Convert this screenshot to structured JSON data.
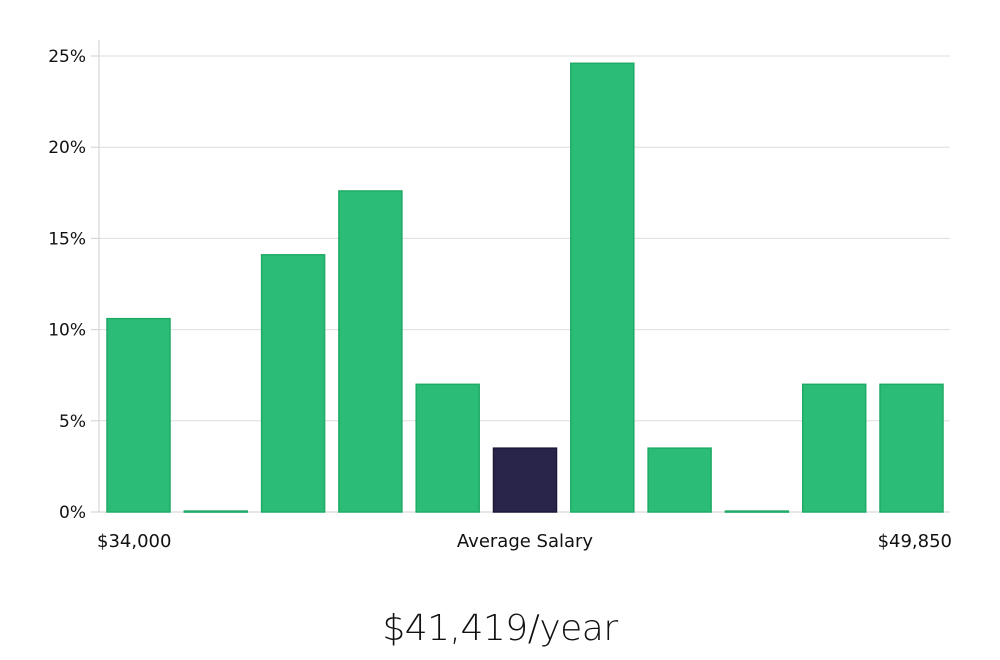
{
  "chart_data": {
    "type": "bar",
    "title": "",
    "xlabel": "Average Salary",
    "ylabel": "",
    "x_min_label": "$34,000",
    "x_max_label": "$49,850",
    "ylim": [
      0,
      25
    ],
    "y_ticks": [
      "0%",
      "5%",
      "10%",
      "15%",
      "20%",
      "25%"
    ],
    "grid": true,
    "values": [
      10.6,
      0.05,
      14.1,
      17.6,
      7.0,
      3.5,
      24.6,
      3.5,
      0.05,
      7.0,
      7.0
    ],
    "highlight_index": 5,
    "colors": {
      "bar": "#2bbd77",
      "bar_stroke": "#1faa66",
      "highlight": "#29254a",
      "grid": "#dddddd",
      "axis": "#cfcfcf"
    }
  },
  "summary": {
    "salary": "$41,419/year"
  }
}
